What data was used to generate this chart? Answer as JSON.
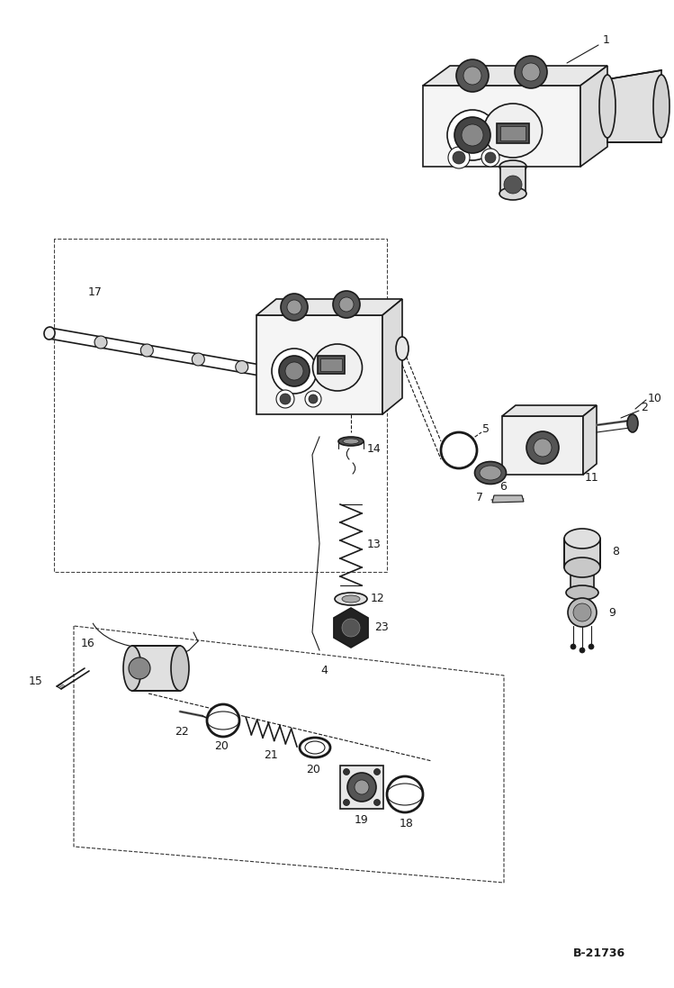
{
  "fig_width": 7.49,
  "fig_height": 10.97,
  "dpi": 100,
  "bg_color": "#ffffff",
  "lc": "#1a1a1a",
  "part_number_label": "B-21736"
}
